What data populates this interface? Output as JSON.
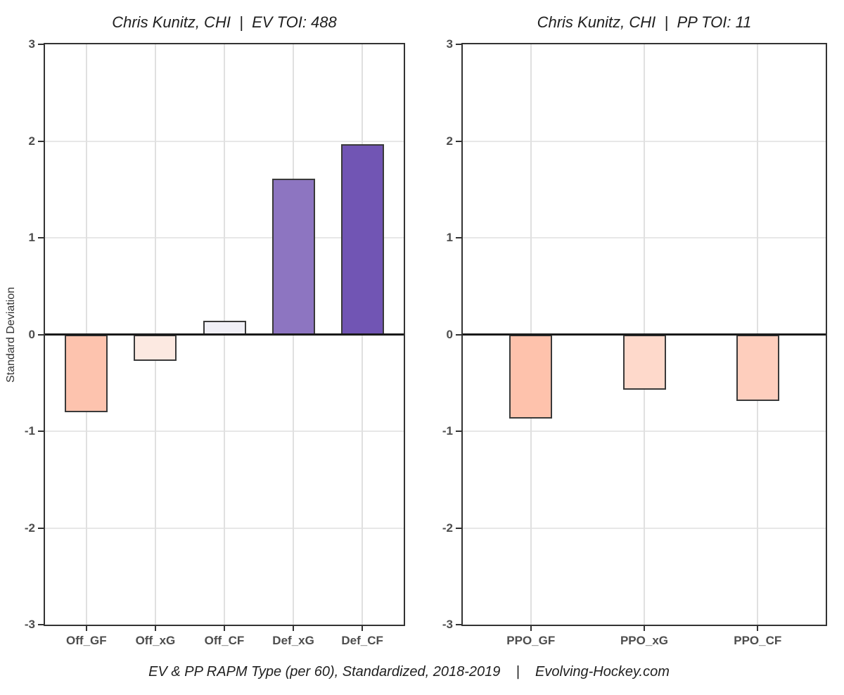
{
  "y_axis_title": "Standard Deviation",
  "caption": "EV & PP RAPM Type (per 60), Standardized, 2018-2019    |    Evolving-Hockey.com",
  "colors": {
    "frame": "#333333",
    "zero_line": "#1a1a1a",
    "gridline": "#e0e0e0",
    "tick_label": "#4d4d4d",
    "bar_border": "#3a3a3a"
  },
  "chart_data": [
    {
      "type": "bar",
      "title": "Chris Kunitz, CHI  |  EV TOI: 488",
      "categories": [
        "Off_GF",
        "Off_xG",
        "Off_CF",
        "Def_xG",
        "Def_CF"
      ],
      "values": [
        -0.8,
        -0.27,
        0.14,
        1.61,
        1.97
      ],
      "bar_colors": [
        "#FDC3AE",
        "#FCE9E1",
        "#F0EFF6",
        "#8D75C1",
        "#7155B4"
      ],
      "xlabel": "",
      "ylabel": "Standard Deviation",
      "ylim": [
        -3,
        3
      ],
      "yticks": [
        3,
        2,
        1,
        0,
        -1,
        -2,
        -3
      ],
      "grid": true,
      "legend": false
    },
    {
      "type": "bar",
      "title": "Chris Kunitz, CHI  |  PP TOI: 11",
      "categories": [
        "PPO_GF",
        "PPO_xG",
        "PPO_CF"
      ],
      "values": [
        -0.87,
        -0.57,
        -0.69
      ],
      "bar_colors": [
        "#FEC2AC",
        "#FED9CB",
        "#FECEBD"
      ],
      "xlabel": "",
      "ylabel": "",
      "ylim": [
        -3,
        3
      ],
      "yticks": [
        3,
        2,
        1,
        0,
        -1,
        -2,
        -3
      ],
      "grid": true,
      "legend": false
    }
  ]
}
